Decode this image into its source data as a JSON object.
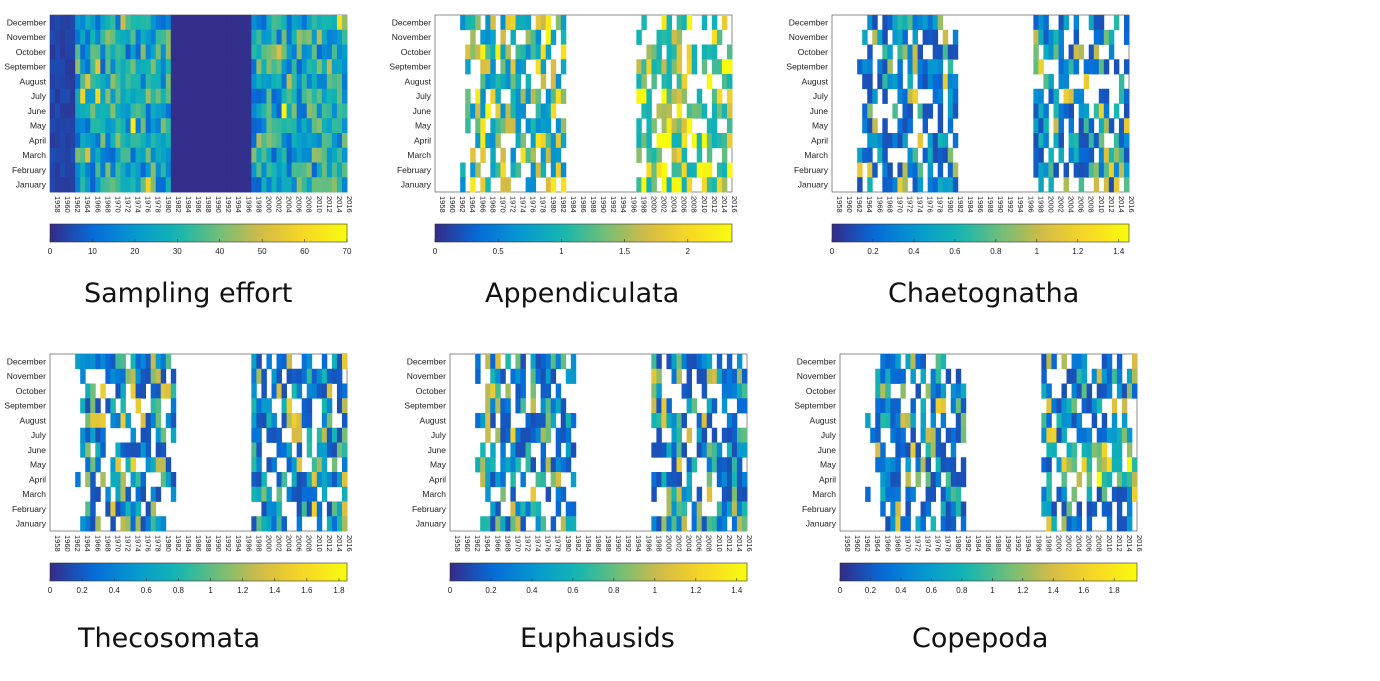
{
  "chart_data": [
    {
      "type": "heatmap",
      "title": "Sampling effort",
      "xlabel": "",
      "ylabel": "",
      "rows": [
        "December",
        "November",
        "October",
        "September",
        "August",
        "July",
        "June",
        "May",
        "April",
        "March",
        "February",
        "January"
      ],
      "x_ticks": [
        "1958",
        "1960",
        "1962",
        "1964",
        "1966",
        "1968",
        "1970",
        "1972",
        "1974",
        "1976",
        "1978",
        "1980",
        "1982",
        "1984",
        "1986",
        "1988",
        "1990",
        "1992",
        "1994",
        "1996",
        "1998",
        "2000",
        "2002",
        "2004",
        "2006",
        "2008",
        "2010",
        "2012",
        "2014",
        "2016"
      ],
      "x_range": [
        1958,
        2016
      ],
      "colorbar": {
        "min": 0,
        "max": 70,
        "ticks": [
          "0",
          "10",
          "20",
          "30",
          "40",
          "50",
          "60",
          "70"
        ]
      },
      "cells": "0-1958-1963,0-1982-1997;0-1956-1962,0-1982-1997;0-1956-1962,0-1982-1997;0-1956-1962,0-1982-1997;0-1956-1962,0-1982-1997;0-1956-1962,0-1982-1997;0-1956-1962,0-1982-1997;0-1956-1962,0-1982-1997;0-1956-1962,0-1982-1997;0-1956-1962,0-1982-1997;0-1956-1962,0-1982-1997;0-1956-1962,0-1982-1997",
      "note": "values are shown by cell colour; empty cells are missing data"
    },
    {
      "type": "heatmap",
      "title": "Appendiculata",
      "rows": [
        "December",
        "November",
        "October",
        "September",
        "August",
        "July",
        "June",
        "May",
        "April",
        "March",
        "February",
        "January"
      ],
      "x_ticks": [
        "1958",
        "1960",
        "1962",
        "1964",
        "1966",
        "1968",
        "1970",
        "1972",
        "1974",
        "1976",
        "1978",
        "1980",
        "1982",
        "1984",
        "1986",
        "1988",
        "1990",
        "1992",
        "1994",
        "1996",
        "1998",
        "2000",
        "2002",
        "2004",
        "2006",
        "2008",
        "2010",
        "2012",
        "2014",
        "2016"
      ],
      "x_range": [
        1958,
        2016
      ],
      "colorbar": {
        "min": 0,
        "max": 2.35,
        "ticks": [
          "0",
          "0.5",
          "1",
          "1.5",
          "2"
        ]
      },
      "gap": [
        1984,
        1997
      ]
    },
    {
      "type": "heatmap",
      "title": "Chaetognatha",
      "rows": [
        "December",
        "November",
        "October",
        "September",
        "August",
        "July",
        "June",
        "May",
        "April",
        "March",
        "February",
        "January"
      ],
      "x_ticks": [
        "1958",
        "1960",
        "1962",
        "1964",
        "1966",
        "1968",
        "1970",
        "1972",
        "1974",
        "1976",
        "1978",
        "1980",
        "1982",
        "1984",
        "1986",
        "1988",
        "1990",
        "1992",
        "1994",
        "1996",
        "1998",
        "2000",
        "2002",
        "2004",
        "2006",
        "2008",
        "2010",
        "2012",
        "2014",
        "2016"
      ],
      "x_range": [
        1958,
        2016
      ],
      "colorbar": {
        "min": 0,
        "max": 1.45,
        "ticks": [
          "0",
          "0.2",
          "0.4",
          "0.6",
          "0.8",
          "1",
          "1.2",
          "1.4"
        ]
      },
      "gap": [
        1983,
        1997
      ]
    },
    {
      "type": "heatmap",
      "title": "Thecosomata",
      "rows": [
        "December",
        "November",
        "October",
        "September",
        "August",
        "July",
        "June",
        "May",
        "April",
        "March",
        "February",
        "January"
      ],
      "x_ticks": [
        "1958",
        "1960",
        "1962",
        "1964",
        "1966",
        "1968",
        "1970",
        "1972",
        "1974",
        "1976",
        "1978",
        "1980",
        "1982",
        "1984",
        "1986",
        "1988",
        "1990",
        "1992",
        "1994",
        "1996",
        "1998",
        "2000",
        "2002",
        "2004",
        "2006",
        "2008",
        "2010",
        "2012",
        "2014",
        "2016"
      ],
      "x_range": [
        1958,
        2016
      ],
      "colorbar": {
        "min": 0,
        "max": 1.85,
        "ticks": [
          "0",
          "0.2",
          "0.4",
          "0.6",
          "0.8",
          "1",
          "1.2",
          "1.4",
          "1.6",
          "1.8"
        ]
      },
      "gap": [
        1983,
        1997
      ]
    },
    {
      "type": "heatmap",
      "title": "Euphausids",
      "rows": [
        "December",
        "November",
        "October",
        "September",
        "August",
        "July",
        "June",
        "May",
        "April",
        "March",
        "February",
        "January"
      ],
      "x_ticks": [
        "1958",
        "1960",
        "1962",
        "1964",
        "1966",
        "1968",
        "1970",
        "1972",
        "1974",
        "1976",
        "1978",
        "1980",
        "1982",
        "1984",
        "1986",
        "1988",
        "1990",
        "1992",
        "1994",
        "1996",
        "1998",
        "2000",
        "2002",
        "2004",
        "2006",
        "2008",
        "2010",
        "2012",
        "2014",
        "2016"
      ],
      "x_range": [
        1958,
        2016
      ],
      "colorbar": {
        "min": 0,
        "max": 1.45,
        "ticks": [
          "0",
          "0.2",
          "0.4",
          "0.6",
          "0.8",
          "1",
          "1.2",
          "1.4"
        ]
      },
      "gap": [
        1983,
        1997
      ]
    },
    {
      "type": "heatmap",
      "title": "Copepoda",
      "rows": [
        "December",
        "November",
        "October",
        "September",
        "August",
        "July",
        "June",
        "May",
        "April",
        "March",
        "February",
        "January"
      ],
      "x_ticks": [
        "1958",
        "1960",
        "1962",
        "1964",
        "1966",
        "1968",
        "1970",
        "1972",
        "1974",
        "1976",
        "1978",
        "1980",
        "1982",
        "1984",
        "1986",
        "1988",
        "1990",
        "1992",
        "1994",
        "1996",
        "1998",
        "2000",
        "2002",
        "2004",
        "2006",
        "2008",
        "2010",
        "2012",
        "2014",
        "2016"
      ],
      "x_range": [
        1958,
        2016
      ],
      "colorbar": {
        "min": 0,
        "max": 1.95,
        "ticks": [
          "0",
          "0.2",
          "0.4",
          "0.6",
          "0.8",
          "1",
          "1.2",
          "1.4",
          "1.6",
          "1.8"
        ]
      },
      "gap": [
        1983,
        1997
      ]
    }
  ],
  "panels": [
    {
      "title": "Sampling effort"
    },
    {
      "title": "Appendiculata"
    },
    {
      "title": "Chaetognatha"
    },
    {
      "title": "Thecosomata"
    },
    {
      "title": "Euphausids"
    },
    {
      "title": "Copepoda"
    }
  ],
  "colors": {
    "low": "#352a87",
    "mid": "#17b7c7",
    "high": "#f9fb0e"
  }
}
